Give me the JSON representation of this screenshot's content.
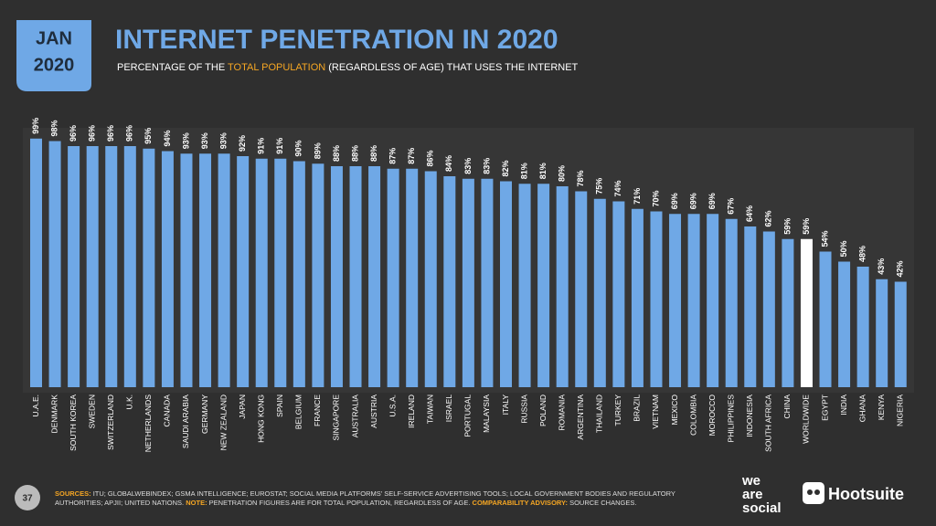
{
  "chart_data": {
    "type": "bar",
    "badge": [
      "JAN",
      "2020"
    ],
    "title": "INTERNET PENETRATION IN 2020",
    "subtitle": [
      "PERCENTAGE OF THE ",
      "TOTAL POPULATION",
      " (REGARDLESS OF AGE) THAT USES THE INTERNET"
    ],
    "categories": [
      "U.A.E.",
      "DENMARK",
      "SOUTH KOREA",
      "SWEDEN",
      "SWITZERLAND",
      "U.K.",
      "NETHERLANDS",
      "CANADA",
      "SAUDI ARABIA",
      "GERMANY",
      "NEW ZEALAND",
      "JAPAN",
      "HONG KONG",
      "SPAIN",
      "BELGIUM",
      "FRANCE",
      "SINGAPORE",
      "AUSTRALIA",
      "AUSTRIA",
      "U.S.A.",
      "IRELAND",
      "TAIWAN",
      "ISRAEL",
      "PORTUGAL",
      "MALAYSIA",
      "ITALY",
      "RUSSIA",
      "POLAND",
      "ROMANIA",
      "ARGENTINA",
      "THAILAND",
      "TURKEY",
      "BRAZIL",
      "VIETNAM",
      "MEXICO",
      "COLOMBIA",
      "MOROCCO",
      "PHILIPPINES",
      "INDONESIA",
      "SOUTH AFRICA",
      "CHINA",
      "WORLDWIDE",
      "EGYPT",
      "INDIA",
      "GHANA",
      "KENYA",
      "NIGERIA"
    ],
    "values": [
      99,
      98,
      96,
      96,
      96,
      96,
      95,
      94,
      93,
      93,
      93,
      92,
      91,
      91,
      90,
      89,
      88,
      88,
      88,
      87,
      87,
      86,
      84,
      83,
      83,
      82,
      81,
      81,
      80,
      78,
      75,
      74,
      71,
      70,
      69,
      69,
      69,
      67,
      64,
      62,
      59,
      59,
      54,
      50,
      48,
      43,
      42
    ],
    "value_labels": [
      "99%",
      "98%",
      "96%",
      "96%",
      "96%",
      "96%",
      "95%",
      "94%",
      "93%",
      "93%",
      "93%",
      "92%",
      "91%",
      "91%",
      "90%",
      "89%",
      "88%",
      "88%",
      "88%",
      "87%",
      "87%",
      "86%",
      "84%",
      "83%",
      "83%",
      "82%",
      "81%",
      "81%",
      "80%",
      "78%",
      "75%",
      "74%",
      "71%",
      "70%",
      "69%",
      "69%",
      "69%",
      "67%",
      "64%",
      "62%",
      "59%",
      "59%",
      "54%",
      "50%",
      "48%",
      "43%",
      "42%"
    ],
    "color": "#6fa8e6",
    "highlight": {
      "category": "WORLDWIDE",
      "color": "#ffffff"
    },
    "ylim": [
      0,
      100
    ]
  },
  "footer": {
    "page": "37",
    "sources_label": "SOURCES:",
    "sources": "ITU; GLOBALWEBINDEX; GSMA INTELLIGENCE; EUROSTAT; SOCIAL MEDIA PLATFORMS’ SELF-SERVICE ADVERTISING TOOLS; LOCAL GOVERNMENT BODIES AND REGULATORY AUTHORITIES; APJII; UNITED NATIONS.",
    "note_label": "NOTE:",
    "note": "PENETRATION FIGURES ARE FOR TOTAL POPULATION, REGARDLESS OF AGE.",
    "advisory_label": "COMPARABILITY ADVISORY:",
    "advisory": "SOURCE CHANGES."
  },
  "logos": {
    "was": [
      "we",
      "are",
      "social"
    ],
    "hootsuite": "Hootsuite"
  }
}
